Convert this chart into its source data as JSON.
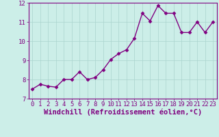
{
  "x": [
    0,
    1,
    2,
    3,
    4,
    5,
    6,
    7,
    8,
    9,
    10,
    11,
    12,
    13,
    14,
    15,
    16,
    17,
    18,
    19,
    20,
    21,
    22,
    23
  ],
  "y": [
    7.5,
    7.75,
    7.65,
    7.6,
    8.0,
    8.0,
    8.4,
    8.0,
    8.1,
    8.5,
    9.05,
    9.35,
    9.55,
    10.15,
    11.45,
    11.05,
    11.85,
    11.45,
    11.45,
    10.45,
    10.45,
    11.0,
    10.45,
    11.0
  ],
  "line_color": "#800080",
  "marker": "D",
  "marker_size": 2.5,
  "bg_color": "#cceee8",
  "grid_color": "#aad4ce",
  "axis_color": "#800080",
  "tick_color": "#800080",
  "xlabel": "Windchill (Refroidissement éolien,°C)",
  "ylim": [
    7,
    12
  ],
  "xlim_min": -0.5,
  "xlim_max": 23.5,
  "yticks": [
    7,
    8,
    9,
    10,
    11,
    12
  ],
  "xticks": [
    0,
    1,
    2,
    3,
    4,
    5,
    6,
    7,
    8,
    9,
    10,
    11,
    12,
    13,
    14,
    15,
    16,
    17,
    18,
    19,
    20,
    21,
    22,
    23
  ],
  "tick_fontsize": 6.5,
  "xlabel_fontsize": 7.5,
  "line_width": 1.0
}
